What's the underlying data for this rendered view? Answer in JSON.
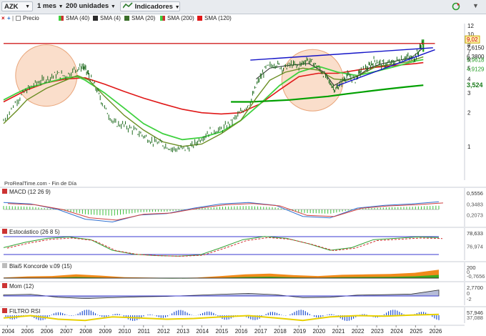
{
  "toolbar": {
    "symbol": "AZK",
    "period": "1 mes",
    "units": "200 unidades",
    "indicators_label": "Indicadores"
  },
  "legend": {
    "price": "Precio",
    "sma40": "SMA (40)",
    "sma4": "SMA (4)",
    "sma20": "SMA (20)",
    "sma200": "SMA (200)",
    "sma120": "SMA (120)"
  },
  "colors": {
    "price": "#1f6b1f",
    "sma40": "#3fd13f",
    "sma4": "#2b2b2b",
    "sma20": "#6b8e23",
    "sma200": "#00a000",
    "sma120": "#e01818",
    "resistance": "#d02020",
    "trendline": "#1414c8",
    "highlight": "#f7c8a8"
  },
  "source_label": "ProRealTime.com - Fin de Día",
  "chart_data": [
    {
      "type": "line",
      "title": "",
      "x_ticks": [
        "2004",
        "2005",
        "2006",
        "2007",
        "2008",
        "2009",
        "2010",
        "2011",
        "2012",
        "2013",
        "2014",
        "2015",
        "2016",
        "2017",
        "2018",
        "2019",
        "2020",
        "2021",
        "2022",
        "2023",
        "2024",
        "2025",
        "2026"
      ],
      "y_ticks": [
        1,
        2,
        3,
        4,
        5,
        6,
        7,
        8,
        10,
        12
      ],
      "ylim": [
        0.5,
        12.5
      ],
      "y_scale": "log",
      "price_labels": [
        "9,02",
        "7,6150",
        "6,3800",
        "5,9618",
        "4,9129",
        "3,524"
      ],
      "price_points": [
        [
          2003.8,
          1.7
        ],
        [
          2004.5,
          2.6
        ],
        [
          2005.0,
          3.2
        ],
        [
          2005.5,
          3.7
        ],
        [
          2006.0,
          4.0
        ],
        [
          2006.5,
          4.4
        ],
        [
          2007.0,
          4.3
        ],
        [
          2007.5,
          4.9
        ],
        [
          2007.9,
          5.2
        ],
        [
          2008.2,
          4.3
        ],
        [
          2008.6,
          3.2
        ],
        [
          2009.0,
          2.2
        ],
        [
          2009.5,
          1.6
        ],
        [
          2010.0,
          1.55
        ],
        [
          2010.5,
          1.4
        ],
        [
          2011.0,
          1.25
        ],
        [
          2011.5,
          1.1
        ],
        [
          2012.0,
          1.05
        ],
        [
          2012.5,
          0.95
        ],
        [
          2013.0,
          0.95
        ],
        [
          2013.5,
          1.0
        ],
        [
          2014.0,
          1.2
        ],
        [
          2014.5,
          1.4
        ],
        [
          2015.0,
          1.4
        ],
        [
          2015.5,
          1.65
        ],
        [
          2016.0,
          2.0
        ],
        [
          2016.5,
          2.5
        ],
        [
          2016.9,
          3.8
        ],
        [
          2017.3,
          5.0
        ],
        [
          2017.8,
          5.5
        ],
        [
          2018.2,
          5.0
        ],
        [
          2018.6,
          5.4
        ],
        [
          2019.0,
          5.2
        ],
        [
          2019.4,
          6.0
        ],
        [
          2019.8,
          5.5
        ],
        [
          2020.2,
          4.6
        ],
        [
          2020.6,
          3.7
        ],
        [
          2020.9,
          3.2
        ],
        [
          2021.2,
          3.8
        ],
        [
          2021.5,
          4.3
        ],
        [
          2021.9,
          3.9
        ],
        [
          2022.2,
          4.8
        ],
        [
          2022.6,
          5.1
        ],
        [
          2022.9,
          5.9
        ],
        [
          2023.3,
          5.4
        ],
        [
          2023.7,
          5.5
        ],
        [
          2024.1,
          5.9
        ],
        [
          2024.5,
          6.3
        ],
        [
          2024.9,
          6.0
        ],
        [
          2025.15,
          7.0
        ],
        [
          2025.4,
          9.02
        ]
      ],
      "series": [
        {
          "key": "sma120",
          "points": [
            [
              2003.8,
              2.5
            ],
            [
              2005.0,
              3.2
            ],
            [
              2006.0,
              3.7
            ],
            [
              2007.0,
              4.0
            ],
            [
              2008.0,
              4.1
            ],
            [
              2009.0,
              3.6
            ],
            [
              2010.0,
              3.1
            ],
            [
              2011.0,
              2.7
            ],
            [
              2012.0,
              2.4
            ],
            [
              2013.0,
              2.15
            ],
            [
              2014.0,
              2.0
            ],
            [
              2015.0,
              1.95
            ],
            [
              2016.0,
              2.0
            ],
            [
              2017.0,
              2.4
            ],
            [
              2018.0,
              3.2
            ],
            [
              2019.0,
              4.2
            ],
            [
              2020.0,
              4.5
            ],
            [
              2021.0,
              4.5
            ],
            [
              2022.0,
              4.8
            ],
            [
              2023.0,
              5.1
            ],
            [
              2024.0,
              5.3
            ],
            [
              2025.0,
              5.5
            ],
            [
              2025.4,
              5.6
            ]
          ]
        },
        {
          "key": "sma40",
          "points": [
            [
              2003.8,
              2.6
            ],
            [
              2004.5,
              3.0
            ],
            [
              2005.0,
              3.3
            ],
            [
              2006.0,
              3.7
            ],
            [
              2007.0,
              4.1
            ],
            [
              2007.6,
              4.2
            ],
            [
              2008.0,
              3.9
            ],
            [
              2009.0,
              3.0
            ],
            [
              2010.0,
              2.2
            ],
            [
              2011.0,
              1.6
            ],
            [
              2012.0,
              1.3
            ],
            [
              2013.0,
              1.15
            ],
            [
              2014.0,
              1.2
            ],
            [
              2015.0,
              1.35
            ],
            [
              2016.0,
              1.7
            ],
            [
              2017.0,
              2.4
            ],
            [
              2018.0,
              3.5
            ],
            [
              2019.0,
              4.6
            ],
            [
              2020.0,
              5.2
            ],
            [
              2021.0,
              4.6
            ],
            [
              2022.0,
              4.3
            ],
            [
              2023.0,
              4.7
            ],
            [
              2024.0,
              5.2
            ],
            [
              2025.0,
              5.8
            ],
            [
              2025.4,
              5.96
            ]
          ]
        },
        {
          "key": "sma200",
          "points": [
            [
              2015.5,
              2.5
            ],
            [
              2016.5,
              2.5
            ],
            [
              2017.5,
              2.55
            ],
            [
              2018.5,
              2.6
            ],
            [
              2019.5,
              2.7
            ],
            [
              2020.5,
              2.8
            ],
            [
              2021.5,
              2.95
            ],
            [
              2022.5,
              3.1
            ],
            [
              2023.5,
              3.25
            ],
            [
              2024.5,
              3.4
            ],
            [
              2025.4,
              3.52
            ]
          ]
        },
        {
          "key": "sma20",
          "points": [
            [
              2003.8,
              1.6
            ],
            [
              2004.5,
              2.1
            ],
            [
              2005.0,
              2.6
            ],
            [
              2006.0,
              3.3
            ],
            [
              2007.0,
              3.9
            ],
            [
              2007.6,
              4.3
            ],
            [
              2008.2,
              3.9
            ],
            [
              2009.0,
              2.8
            ],
            [
              2010.0,
              1.9
            ],
            [
              2011.0,
              1.4
            ],
            [
              2012.0,
              1.1
            ],
            [
              2013.0,
              1.0
            ],
            [
              2014.0,
              1.05
            ],
            [
              2015.0,
              1.3
            ],
            [
              2016.0,
              1.7
            ],
            [
              2016.8,
              2.7
            ],
            [
              2017.5,
              3.9
            ],
            [
              2018.3,
              4.6
            ],
            [
              2019.2,
              5.0
            ],
            [
              2020.0,
              4.8
            ],
            [
              2020.8,
              4.0
            ],
            [
              2021.5,
              3.9
            ],
            [
              2022.3,
              4.5
            ],
            [
              2023.0,
              5.2
            ],
            [
              2023.8,
              5.4
            ],
            [
              2024.6,
              5.7
            ],
            [
              2025.4,
              6.3
            ]
          ]
        },
        {
          "key": "sma4",
          "points": [
            [
              2016.8,
              4.0
            ],
            [
              2017.5,
              5.0
            ],
            [
              2018.5,
              5.3
            ],
            [
              2019.5,
              5.5
            ],
            [
              2020.3,
              4.6
            ],
            [
              2020.8,
              3.5
            ],
            [
              2021.3,
              3.9
            ],
            [
              2022.0,
              4.2
            ],
            [
              2022.6,
              5.0
            ],
            [
              2023.3,
              5.5
            ],
            [
              2024.0,
              5.8
            ],
            [
              2024.8,
              6.2
            ],
            [
              2025.4,
              7.6
            ]
          ]
        }
      ],
      "lines": [
        {
          "key": "resistance",
          "from": [
            2003.8,
            8.3
          ],
          "to": [
            2026.0,
            8.3
          ]
        },
        {
          "key": "trendline",
          "from": [
            2016.5,
            5.9
          ],
          "to": [
            2025.9,
            7.6
          ]
        },
        {
          "key": "trendline",
          "from": [
            2021.0,
            3.5
          ],
          "to": [
            2026.0,
            7.3
          ]
        }
      ],
      "circles": [
        {
          "cx": 2006.0,
          "cy": 4.3
        },
        {
          "cx": 2019.7,
          "cy": 3.9
        }
      ]
    },
    {
      "type": "line",
      "title": "MACD (12 26 9)",
      "values": [
        "0,5556",
        "0,3483",
        "0,2073"
      ],
      "series_values": [
        0.5,
        0.4,
        0.0,
        -0.7,
        -0.9,
        -0.4,
        -0.3,
        0.1,
        0.4,
        0.5,
        0.3,
        -0.5,
        -0.6,
        0.1,
        0.3,
        0.4,
        0.55
      ]
    },
    {
      "type": "line",
      "title": "Estocástico (26 8 5)",
      "values": [
        "78,633",
        "76,974"
      ],
      "series_values": [
        40,
        60,
        75,
        80,
        70,
        30,
        15,
        10,
        8,
        12,
        40,
        70,
        82,
        75,
        55,
        30,
        40,
        70,
        75,
        80,
        78
      ]
    },
    {
      "type": "area",
      "title": "Blai5 Koncorde v.09 (15)",
      "values": [
        "200",
        "0",
        "-0,7656"
      ],
      "series_values": [
        20,
        35,
        40,
        60,
        45,
        25,
        20,
        15,
        20,
        40,
        60,
        70,
        50,
        40,
        55,
        60,
        65,
        80,
        120
      ]
    },
    {
      "type": "area",
      "title": "Mom (12)",
      "values": [
        "2,7700",
        "0",
        "-2"
      ],
      "series_values": [
        0.5,
        0.8,
        -0.6,
        -1.2,
        -0.8,
        -0.4,
        -0.2,
        0.3,
        0.8,
        1.2,
        0.6,
        -0.8,
        -0.6,
        0.4,
        0.6,
        0.9,
        2.77
      ]
    },
    {
      "type": "area",
      "title": "FILTRO RSI",
      "values": [
        "57,946",
        "37,088"
      ],
      "series_values": [
        50,
        60,
        45,
        40,
        55,
        50,
        45,
        48,
        55,
        60,
        50,
        40,
        55,
        60,
        58,
        62,
        65
      ]
    }
  ]
}
